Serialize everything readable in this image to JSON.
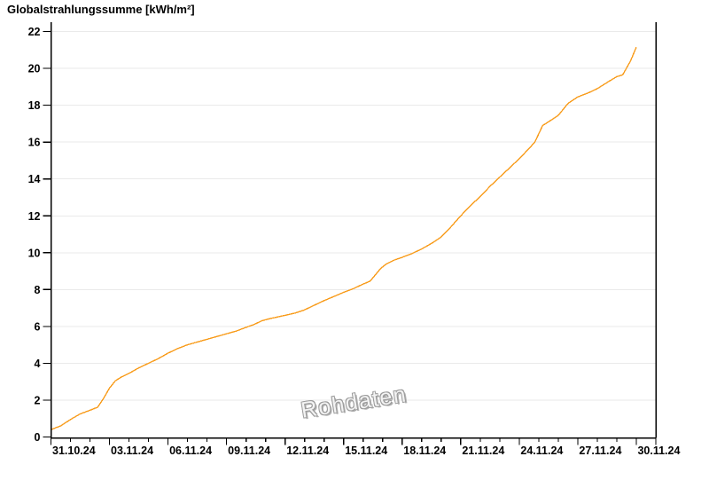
{
  "chart_data": {
    "type": "line",
    "title": "Globalstrahlungssumme [kWh/m²]",
    "watermark": "Rohdaten",
    "x_axis": {
      "tick_labels": [
        "31.10.24",
        "03.11.24",
        "06.11.24",
        "09.11.24",
        "12.11.24",
        "15.11.24",
        "18.11.24",
        "21.11.24",
        "24.11.24",
        "27.11.24",
        "30.11.24"
      ],
      "label_every_days": 3,
      "minor_tick_every_days": 1,
      "range_days": 31
    },
    "y_axis": {
      "min": 0,
      "max": 22,
      "tick_step": 2,
      "tick_labels": [
        "0",
        "2",
        "4",
        "6",
        "8",
        "10",
        "12",
        "14",
        "16",
        "18",
        "20",
        "22"
      ]
    },
    "grid": {
      "horizontal": true,
      "color": "#EAEAEA"
    },
    "legend": "none",
    "series": [
      {
        "name": "Globalstrahlungssumme",
        "unit": "kWh/m²",
        "color": "#F89C1C",
        "points_day_value": [
          [
            0,
            0.4
          ],
          [
            0.5,
            0.6
          ],
          [
            1,
            0.95
          ],
          [
            1.5,
            1.25
          ],
          [
            2,
            1.45
          ],
          [
            2.4,
            1.62
          ],
          [
            2.7,
            2.1
          ],
          [
            3,
            2.65
          ],
          [
            3.3,
            3.05
          ],
          [
            3.6,
            3.25
          ],
          [
            4,
            3.45
          ],
          [
            4.5,
            3.75
          ],
          [
            5,
            4.0
          ],
          [
            5.5,
            4.25
          ],
          [
            6,
            4.55
          ],
          [
            6.5,
            4.8
          ],
          [
            7,
            5.0
          ],
          [
            7.5,
            5.15
          ],
          [
            8,
            5.3
          ],
          [
            8.5,
            5.45
          ],
          [
            9,
            5.6
          ],
          [
            9.5,
            5.75
          ],
          [
            10,
            5.95
          ],
          [
            10.4,
            6.1
          ],
          [
            10.8,
            6.3
          ],
          [
            11.2,
            6.42
          ],
          [
            12,
            6.6
          ],
          [
            12.5,
            6.72
          ],
          [
            13,
            6.9
          ],
          [
            13.5,
            7.15
          ],
          [
            14,
            7.4
          ],
          [
            14.5,
            7.62
          ],
          [
            15,
            7.85
          ],
          [
            15.5,
            8.05
          ],
          [
            16,
            8.3
          ],
          [
            16.35,
            8.45
          ],
          [
            16.9,
            9.15
          ],
          [
            17.2,
            9.4
          ],
          [
            17.6,
            9.6
          ],
          [
            18,
            9.75
          ],
          [
            18.5,
            9.95
          ],
          [
            19,
            10.2
          ],
          [
            19.5,
            10.5
          ],
          [
            20,
            10.85
          ],
          [
            20.5,
            11.4
          ],
          [
            21,
            12.0
          ],
          [
            21.5,
            12.55
          ],
          [
            22,
            13.05
          ],
          [
            22.5,
            13.6
          ],
          [
            23,
            14.1
          ],
          [
            23.5,
            14.6
          ],
          [
            24,
            15.1
          ],
          [
            24.5,
            15.65
          ],
          [
            24.8,
            16.0
          ],
          [
            25.2,
            16.9
          ],
          [
            25.5,
            17.1
          ],
          [
            26,
            17.45
          ],
          [
            26.5,
            18.1
          ],
          [
            27,
            18.45
          ],
          [
            27.6,
            18.7
          ],
          [
            28,
            18.9
          ],
          [
            28.6,
            19.3
          ],
          [
            29,
            19.55
          ],
          [
            29.3,
            19.65
          ],
          [
            29.7,
            20.4
          ],
          [
            30,
            21.15
          ]
        ]
      }
    ],
    "colors": {
      "axis": "#000000",
      "grid": "#EAEAEA",
      "line": "#F89C1C",
      "background": "#FFFFFF"
    }
  }
}
